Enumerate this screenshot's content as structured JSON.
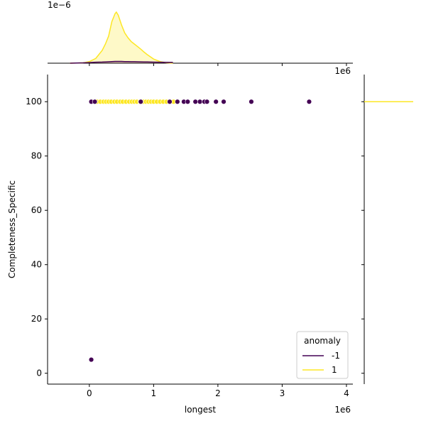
{
  "chart_data": {
    "type": "scatter",
    "xlabel": "longest",
    "ylabel": "Completeness_Specific",
    "x_offset_label": "1e6",
    "top_marginal_offset_label": "1e−6",
    "xlim": [
      -650000,
      4100000
    ],
    "ylim": [
      -4,
      110
    ],
    "x_ticks": [
      0,
      1000000,
      2000000,
      3000000,
      4000000
    ],
    "x_tick_labels": [
      "0",
      "1",
      "2",
      "3",
      "4"
    ],
    "y_ticks": [
      0,
      20,
      40,
      60,
      80,
      100
    ],
    "y_tick_labels": [
      "0",
      "20",
      "40",
      "60",
      "80",
      "100"
    ],
    "legend": {
      "title": "anomaly",
      "placement": "lower-right",
      "entries": [
        {
          "label": "-1",
          "color": "#440154"
        },
        {
          "label": "1",
          "color": "#fde725"
        }
      ]
    },
    "series": [
      {
        "name": "-1",
        "color": "#440154",
        "points": [
          {
            "x": 30000,
            "y": 100
          },
          {
            "x": 85000,
            "y": 100
          },
          {
            "x": 800000,
            "y": 100
          },
          {
            "x": 1250000,
            "y": 100
          },
          {
            "x": 1370000,
            "y": 100
          },
          {
            "x": 1470000,
            "y": 100
          },
          {
            "x": 1530000,
            "y": 100
          },
          {
            "x": 1650000,
            "y": 100
          },
          {
            "x": 1720000,
            "y": 100
          },
          {
            "x": 1790000,
            "y": 100
          },
          {
            "x": 1830000,
            "y": 100
          },
          {
            "x": 1970000,
            "y": 100
          },
          {
            "x": 2090000,
            "y": 100
          },
          {
            "x": 2520000,
            "y": 100
          },
          {
            "x": 3420000,
            "y": 100
          },
          {
            "x": 30000,
            "y": 5
          }
        ]
      },
      {
        "name": "1",
        "color": "#fde725",
        "points": [
          {
            "x": 120000,
            "y": 100
          },
          {
            "x": 170000,
            "y": 100
          },
          {
            "x": 220000,
            "y": 100
          },
          {
            "x": 260000,
            "y": 100
          },
          {
            "x": 300000,
            "y": 100
          },
          {
            "x": 340000,
            "y": 100
          },
          {
            "x": 390000,
            "y": 100
          },
          {
            "x": 430000,
            "y": 100
          },
          {
            "x": 480000,
            "y": 100
          },
          {
            "x": 520000,
            "y": 100
          },
          {
            "x": 570000,
            "y": 100
          },
          {
            "x": 620000,
            "y": 100
          },
          {
            "x": 660000,
            "y": 100
          },
          {
            "x": 700000,
            "y": 100
          },
          {
            "x": 740000,
            "y": 100
          },
          {
            "x": 790000,
            "y": 100
          },
          {
            "x": 840000,
            "y": 100
          },
          {
            "x": 880000,
            "y": 100
          },
          {
            "x": 920000,
            "y": 100
          },
          {
            "x": 960000,
            "y": 100
          },
          {
            "x": 1000000,
            "y": 100
          },
          {
            "x": 1050000,
            "y": 100
          },
          {
            "x": 1100000,
            "y": 100
          },
          {
            "x": 1150000,
            "y": 100
          },
          {
            "x": 1200000,
            "y": 100
          },
          {
            "x": 1310000,
            "y": 100
          }
        ]
      }
    ],
    "top_marginal": {
      "type": "kde",
      "x": [
        -300000,
        -100000,
        0,
        100000,
        200000,
        250000,
        300000,
        350000,
        400000,
        420000,
        450000,
        500000,
        550000,
        600000,
        650000,
        700000,
        750000,
        800000,
        850000,
        900000,
        950000,
        1000000,
        1100000,
        1200000,
        1300000
      ],
      "series": [
        {
          "name": "1",
          "color": "#fde725",
          "values": [
            0,
            0.01,
            0.05,
            0.15,
            0.4,
            0.6,
            0.85,
            1.3,
            1.55,
            1.6,
            1.5,
            1.2,
            0.95,
            0.8,
            0.68,
            0.6,
            0.52,
            0.44,
            0.35,
            0.27,
            0.2,
            0.13,
            0.05,
            0.015,
            0
          ]
        },
        {
          "name": "-1",
          "color": "#440154",
          "values": [
            0,
            0.01,
            0.02,
            0.03,
            0.035,
            0.04,
            0.045,
            0.05,
            0.055,
            0.055,
            0.055,
            0.055,
            0.05,
            0.05,
            0.048,
            0.046,
            0.044,
            0.042,
            0.04,
            0.038,
            0.035,
            0.033,
            0.03,
            0.028,
            0.025
          ]
        }
      ]
    },
    "right_marginal": {
      "type": "kde",
      "series": [
        {
          "name": "1",
          "color": "#fde725",
          "y": 100
        }
      ]
    }
  }
}
